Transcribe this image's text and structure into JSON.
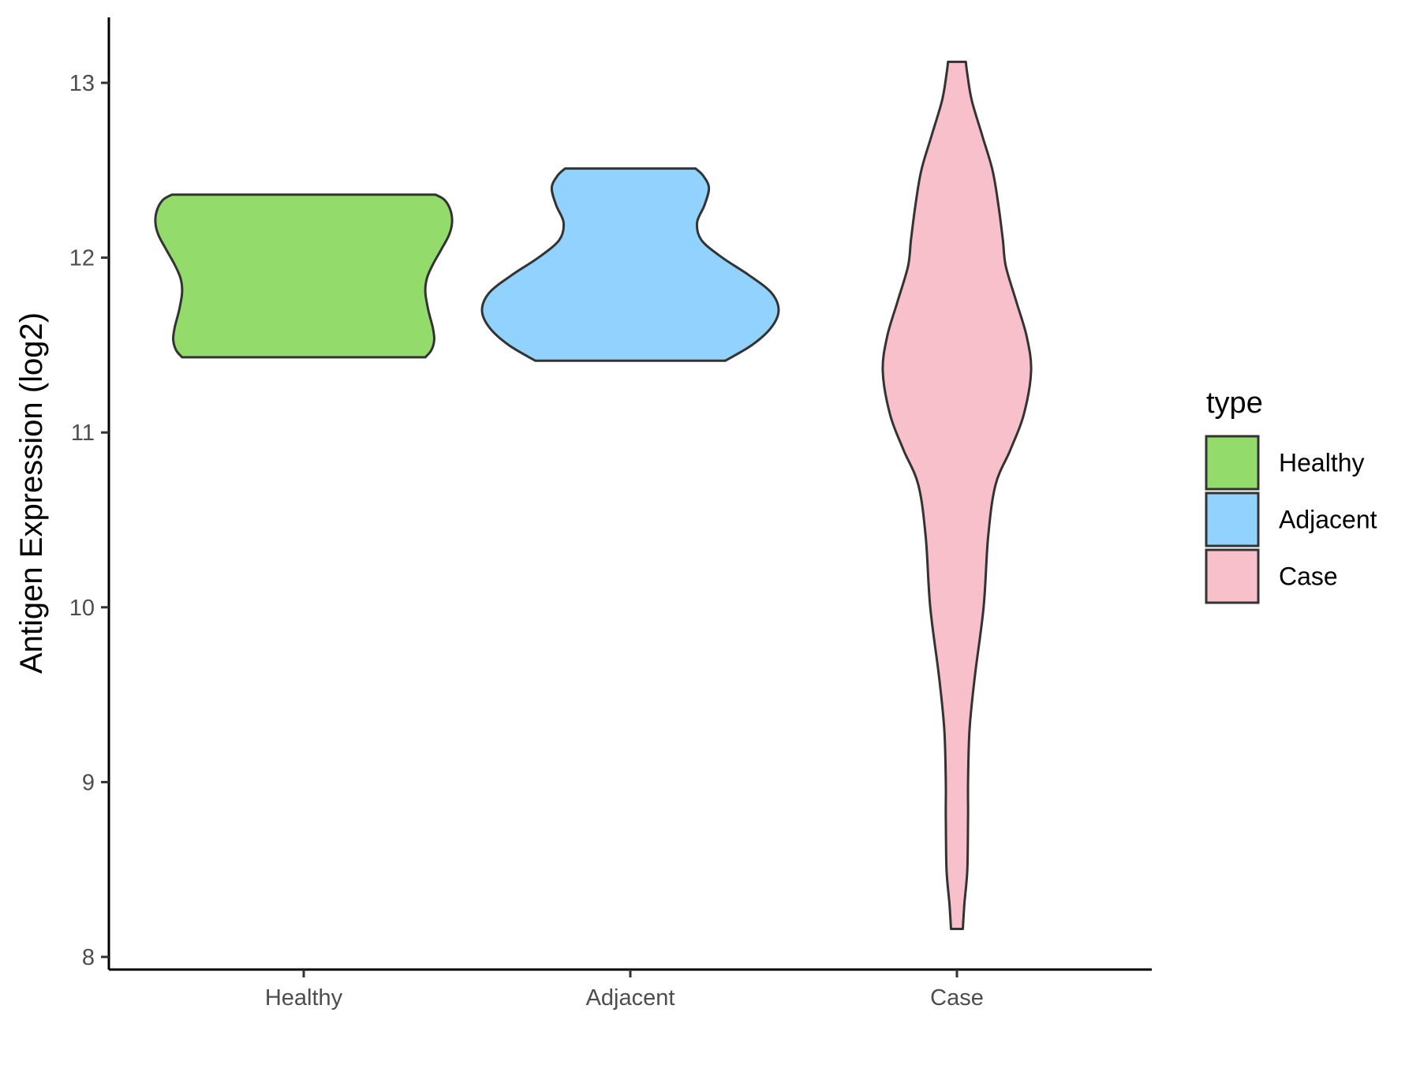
{
  "chart_data": {
    "type": "violin",
    "title": "",
    "xlabel": "",
    "ylabel": "Antigen Expression (log2)",
    "ylim": [
      7.95,
      13.35
    ],
    "yticks": [
      8,
      9,
      10,
      11,
      12,
      13
    ],
    "grid": false,
    "categories": [
      "Healthy",
      "Adjacent",
      "Case"
    ],
    "legend": {
      "title": "type",
      "position": "right",
      "entries": [
        "Healthy",
        "Adjacent",
        "Case"
      ]
    },
    "series": [
      {
        "name": "Healthy",
        "color": "#93db6b",
        "min": 11.43,
        "max": 12.36,
        "profile": [
          [
            11.43,
            0.82
          ],
          [
            11.47,
            0.86
          ],
          [
            11.53,
            0.88
          ],
          [
            11.6,
            0.87
          ],
          [
            11.7,
            0.84
          ],
          [
            11.8,
            0.82
          ],
          [
            11.88,
            0.83
          ],
          [
            11.96,
            0.87
          ],
          [
            12.05,
            0.93
          ],
          [
            12.13,
            0.98
          ],
          [
            12.2,
            1.0
          ],
          [
            12.27,
            0.99
          ],
          [
            12.33,
            0.95
          ],
          [
            12.36,
            0.89
          ]
        ]
      },
      {
        "name": "Adjacent",
        "color": "#91d3fe",
        "min": 11.41,
        "max": 12.51,
        "profile": [
          [
            11.41,
            0.64
          ],
          [
            11.5,
            0.82
          ],
          [
            11.6,
            0.95
          ],
          [
            11.7,
            1.0
          ],
          [
            11.8,
            0.95
          ],
          [
            11.9,
            0.8
          ],
          [
            12.0,
            0.62
          ],
          [
            12.1,
            0.48
          ],
          [
            12.2,
            0.45
          ],
          [
            12.3,
            0.5
          ],
          [
            12.4,
            0.53
          ],
          [
            12.47,
            0.49
          ],
          [
            12.51,
            0.44
          ]
        ]
      },
      {
        "name": "Case",
        "color": "#f7c0cb",
        "min": 8.16,
        "max": 13.12,
        "profile": [
          [
            8.16,
            0.04
          ],
          [
            8.3,
            0.05
          ],
          [
            8.5,
            0.07
          ],
          [
            8.8,
            0.075
          ],
          [
            9.0,
            0.075
          ],
          [
            9.3,
            0.085
          ],
          [
            9.6,
            0.12
          ],
          [
            10.0,
            0.18
          ],
          [
            10.4,
            0.21
          ],
          [
            10.7,
            0.26
          ],
          [
            10.9,
            0.36
          ],
          [
            11.1,
            0.45
          ],
          [
            11.35,
            0.5
          ],
          [
            11.55,
            0.47
          ],
          [
            11.75,
            0.4
          ],
          [
            11.95,
            0.33
          ],
          [
            12.1,
            0.31
          ],
          [
            12.3,
            0.28
          ],
          [
            12.5,
            0.24
          ],
          [
            12.7,
            0.17
          ],
          [
            12.9,
            0.1
          ],
          [
            13.05,
            0.07
          ],
          [
            13.12,
            0.06
          ]
        ]
      }
    ]
  }
}
